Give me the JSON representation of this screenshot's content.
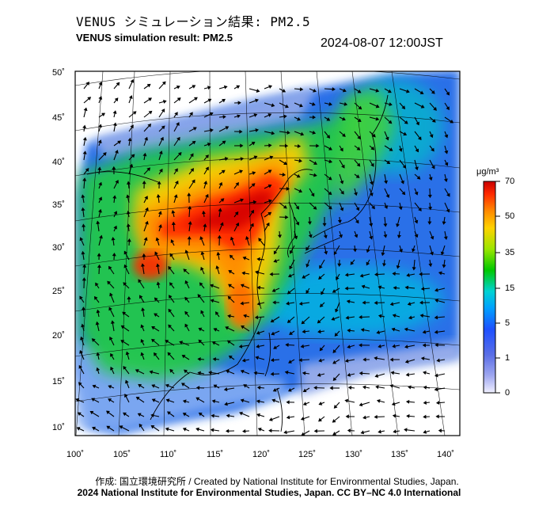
{
  "title_jp": "VENUS シミュレーション結果: PM2.5",
  "title_en": "VENUS simulation result: PM2.5",
  "timestamp": "2024-08-07 12:00JST",
  "lat_labels": [
    "50˚",
    "45˚",
    "40˚",
    "35˚",
    "30˚",
    "25˚",
    "20˚",
    "15˚",
    "10˚"
  ],
  "lon_labels": [
    "100˚",
    "105˚",
    "110˚",
    "115˚",
    "120˚",
    "125˚",
    "130˚",
    "135˚",
    "140˚"
  ],
  "colorbar": {
    "unit": "μg/m³",
    "labels": [
      "70",
      "50",
      "35",
      "15",
      "5",
      "1",
      "0"
    ],
    "colors": [
      "#c80000",
      "#ff2a00",
      "#ff8a00",
      "#ffd200",
      "#9be600",
      "#00c800",
      "#00d2d2",
      "#00a0ff",
      "#1e50ff",
      "#5a6ee6",
      "#a0a8f0",
      "#f0f0ff"
    ]
  },
  "credit_line1": "作成: 国立環境研究所 / Created by National Institute for Environmental Studies, Japan.",
  "credit_line2": "2024 National Institute for Environmental Studies, Japan. CC BY–NC 4.0 International"
}
